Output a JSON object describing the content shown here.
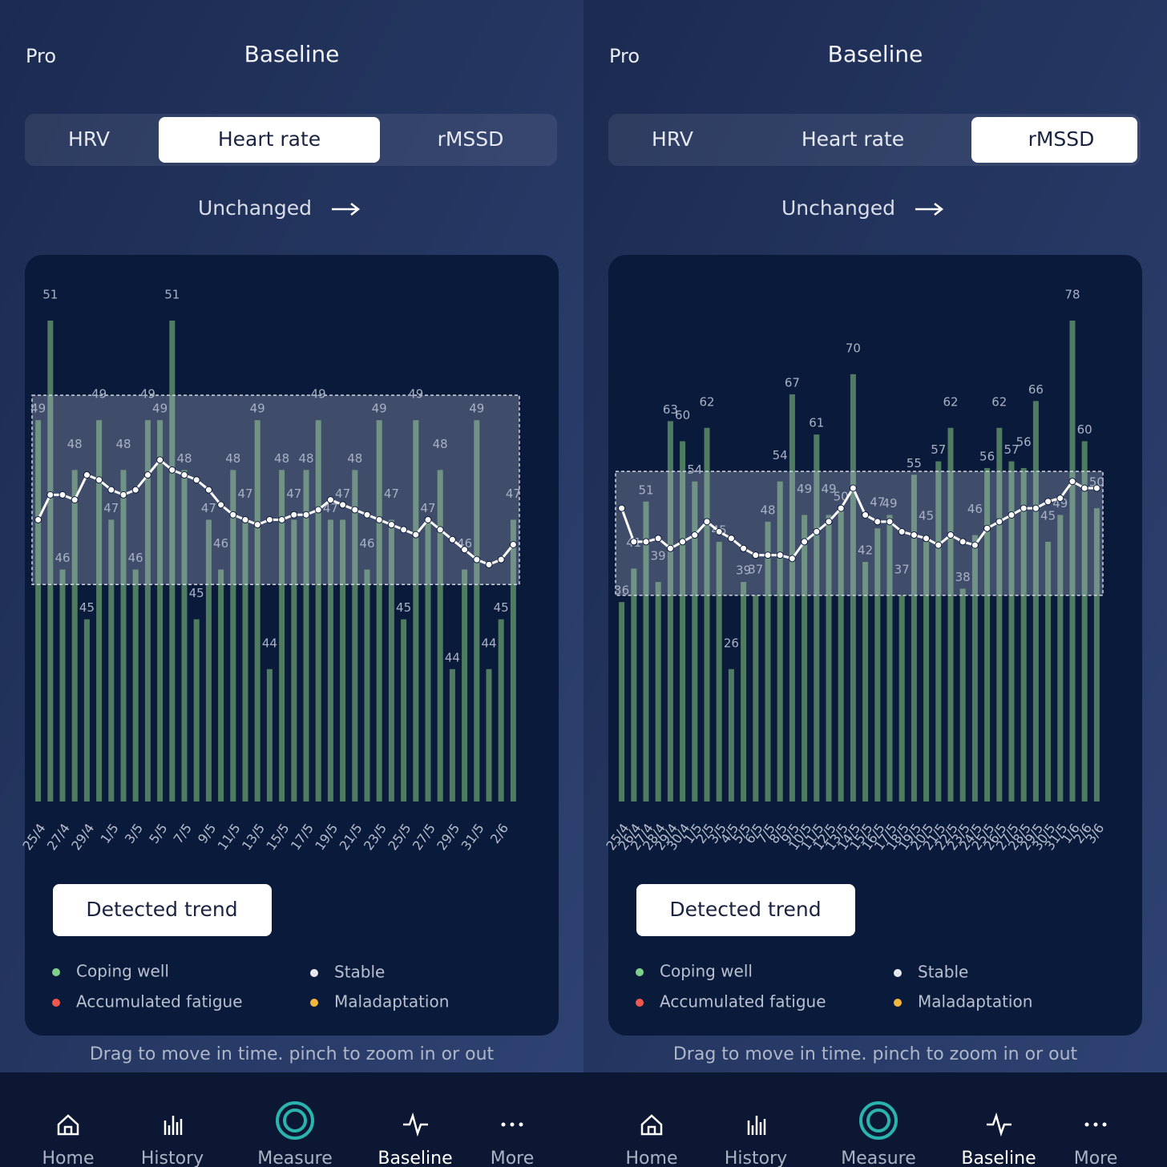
{
  "screens": [
    {
      "pro": "Pro",
      "title": "Baseline",
      "tabs": [
        "HRV",
        "Heart rate",
        "rMSSD"
      ],
      "active_tab": 1,
      "status": "Unchanged",
      "chart": {
        "type": "bar",
        "categories": [
          "25/4",
          null,
          "27/4",
          null,
          "29/4",
          null,
          "1/5",
          null,
          "3/5",
          null,
          "5/5",
          null,
          "7/5",
          null,
          "9/5",
          null,
          "11/5",
          null,
          "13/5",
          null,
          "15/5",
          null,
          "17/5",
          null,
          "19/5",
          null,
          "21/5",
          null,
          "23/5",
          null,
          "25/5",
          null,
          "27/5",
          null,
          "29/5",
          null,
          "31/5",
          null,
          "2/6",
          null
        ],
        "values": [
          49,
          51,
          46,
          48,
          45,
          49,
          47,
          48,
          46,
          49,
          49,
          51,
          48,
          45,
          47,
          46,
          48,
          47,
          49,
          44,
          48,
          47,
          48,
          49,
          47,
          47,
          48,
          46,
          49,
          47,
          45,
          49,
          47,
          48,
          44,
          46,
          49,
          44,
          45,
          47
        ],
        "trend": [
          47,
          47.5,
          47.5,
          47.4,
          47.9,
          47.8,
          47.6,
          47.5,
          47.6,
          47.9,
          48.2,
          48,
          47.9,
          47.8,
          47.6,
          47.3,
          47.1,
          47,
          46.9,
          47,
          47,
          47.1,
          47.1,
          47.2,
          47.4,
          47.3,
          47.2,
          47.1,
          47,
          46.9,
          46.8,
          46.7,
          47,
          46.8,
          46.6,
          46.4,
          46.2,
          46.1,
          46.2,
          46.5
        ],
        "band": [
          45.7,
          49.5
        ],
        "bar_color": "#4f7c60",
        "line_color": "#ffffff"
      },
      "button": "Detected trend",
      "legend": [
        {
          "label": "Coping well",
          "color": "#7fd08a"
        },
        {
          "label": "Stable",
          "color": "#e6e9ef"
        },
        {
          "label": "Accumulated fatigue",
          "color": "#f0584d"
        },
        {
          "label": "Maladaptation",
          "color": "#f2b63d"
        }
      ],
      "hint": "Drag to move in time. pinch to zoom in or out",
      "nav": [
        "Home",
        "History",
        "Measure",
        "Baseline",
        "More"
      ],
      "active_nav": 3
    },
    {
      "pro": "Pro",
      "title": "Baseline",
      "tabs": [
        "HRV",
        "Heart rate",
        "rMSSD"
      ],
      "active_tab": 2,
      "status": "Unchanged",
      "chart": {
        "type": "bar",
        "categories": [
          "25/4",
          "26/4",
          "27/4",
          "28/4",
          "29/4",
          "30/4",
          "1/5",
          "2/5",
          "3/5",
          "4/5",
          "5/5",
          "6/5",
          "7/5",
          "8/5",
          "9/5",
          "10/5",
          "11/5",
          "12/5",
          "13/5",
          "14/5",
          "15/5",
          "16/5",
          "17/5",
          "18/5",
          "19/5",
          "20/5",
          "21/5",
          "22/5",
          "23/5",
          "24/5",
          "25/5",
          "26/5",
          "27/5",
          "28/5",
          "29/5",
          "30/5",
          "31/5",
          "1/6",
          "2/6",
          "3/6"
        ],
        "values": [
          36,
          41,
          51,
          39,
          63,
          60,
          54,
          62,
          45,
          26,
          39,
          37,
          48,
          54,
          67,
          49,
          61,
          49,
          50,
          70,
          42,
          47,
          49,
          37,
          55,
          45,
          57,
          62,
          38,
          46,
          56,
          62,
          57,
          56,
          66,
          45,
          49,
          78,
          60,
          50
        ],
        "trend": [
          50,
          45,
          45,
          45.5,
          44,
          45,
          46,
          48,
          46.5,
          45.5,
          44,
          43,
          43,
          43,
          42.5,
          45,
          46.5,
          48,
          50,
          53,
          49,
          48,
          48,
          46.5,
          46,
          45.5,
          44.5,
          46,
          45,
          44.5,
          47,
          48,
          49,
          50,
          50,
          51,
          51.5,
          54,
          53,
          53
        ],
        "band": [
          37,
          55.5
        ],
        "bar_color": "#4f7c60",
        "line_color": "#ffffff"
      },
      "button": "Detected trend",
      "legend": [
        {
          "label": "Coping well",
          "color": "#7fd08a"
        },
        {
          "label": "Stable",
          "color": "#e6e9ef"
        },
        {
          "label": "Accumulated fatigue",
          "color": "#f0584d"
        },
        {
          "label": "Maladaptation",
          "color": "#f2b63d"
        }
      ],
      "hint": "Drag to move in time. pinch to zoom in or out",
      "nav": [
        "Home",
        "History",
        "Measure",
        "Baseline",
        "More"
      ],
      "active_nav": 3
    }
  ]
}
